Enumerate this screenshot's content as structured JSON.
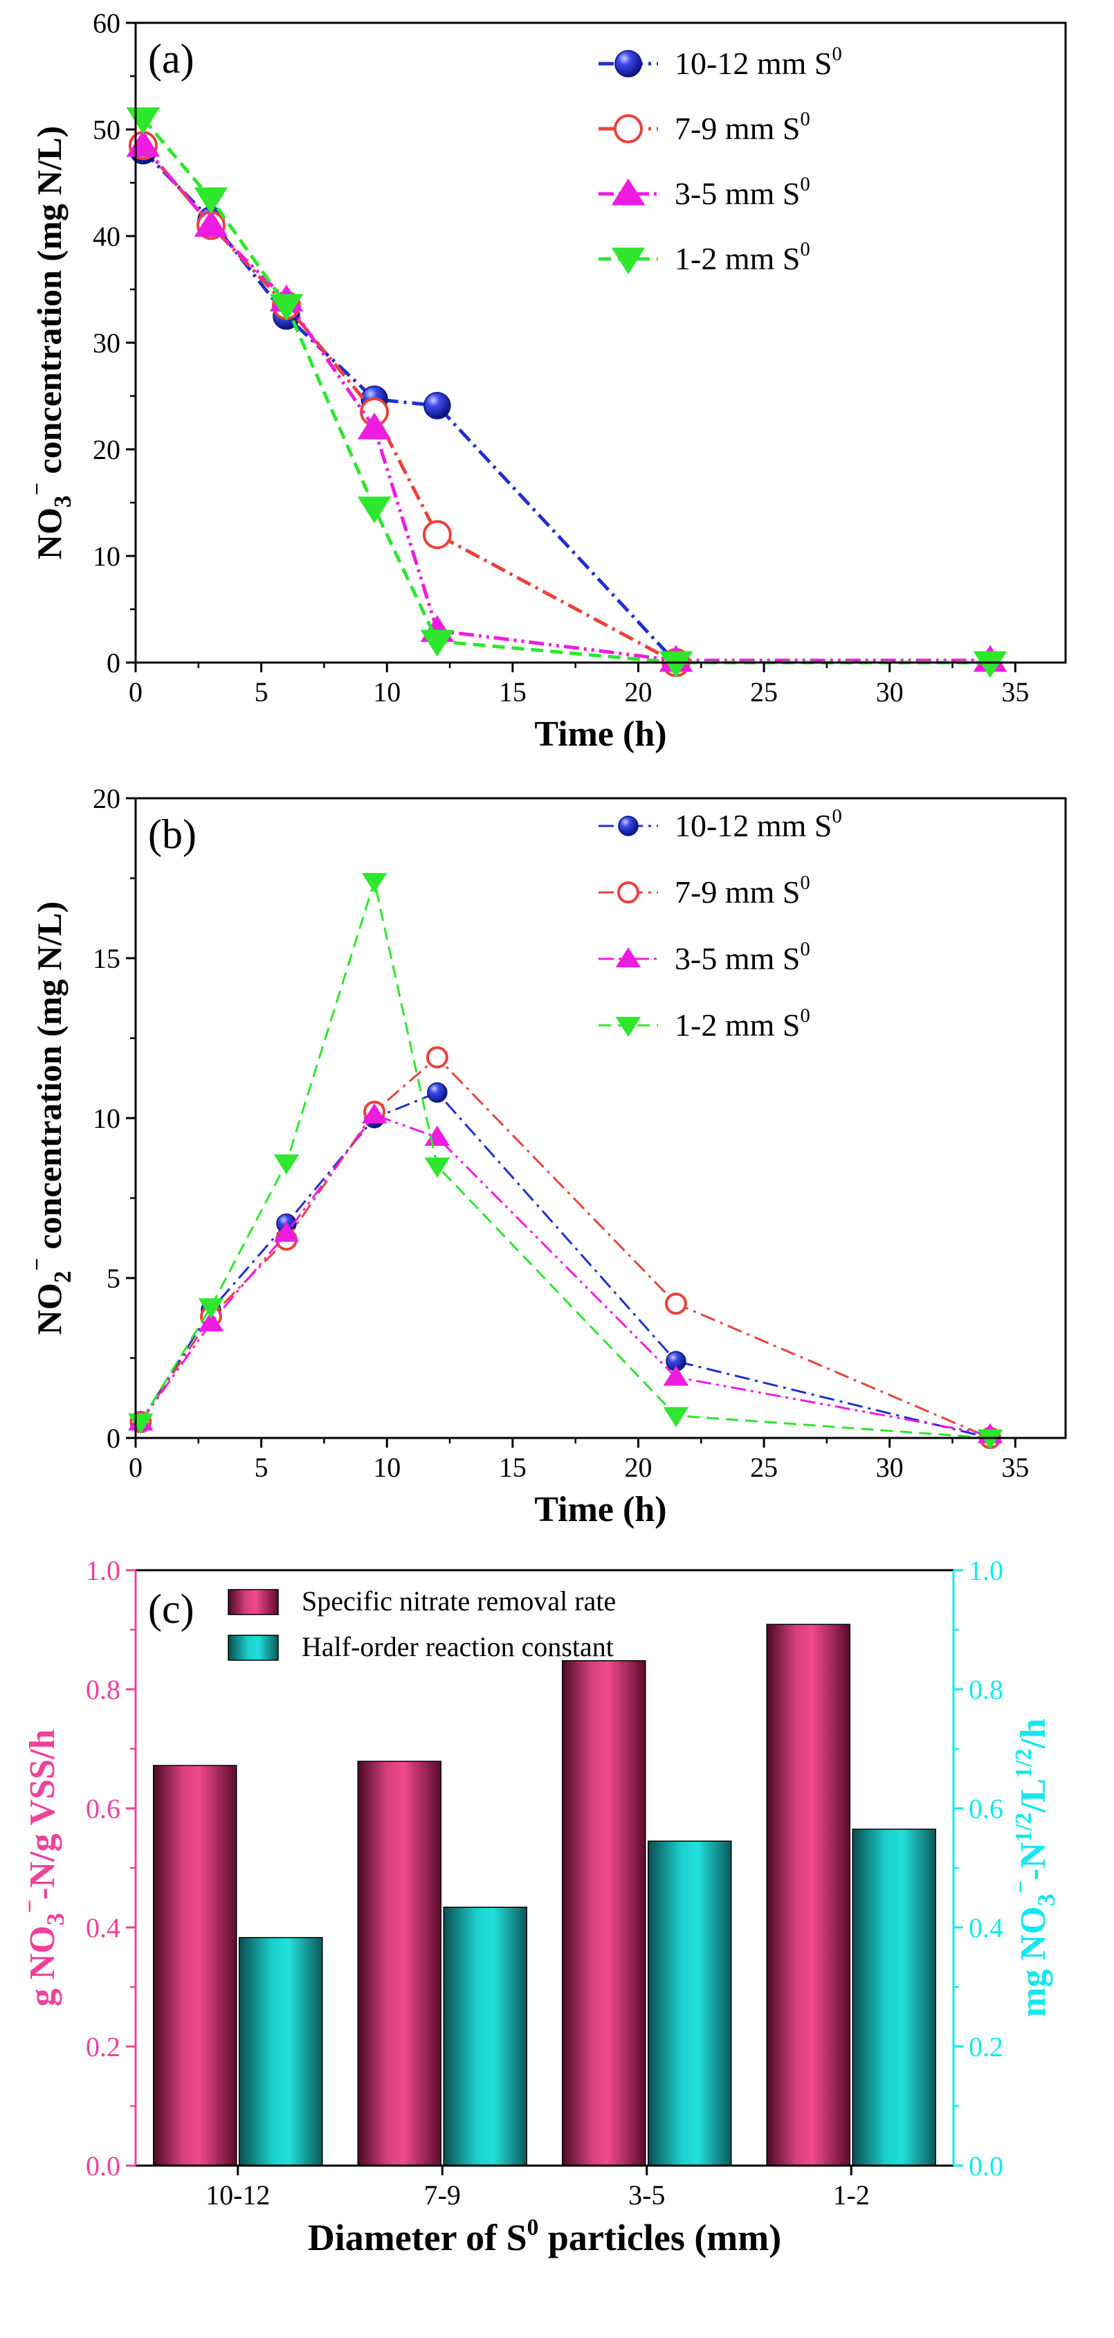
{
  "chart_data": [
    {
      "panel_label": "(a)",
      "type": "line",
      "xlabel": "Time (h)",
      "ylabel_main": "NO",
      "ylabel_sub": "3",
      "ylabel_sup": "−",
      "ylabel_rest": " concentration (mg N/L)",
      "xlim": [
        0,
        37
      ],
      "ylim": [
        0,
        60
      ],
      "xticks": [
        0,
        5,
        10,
        15,
        20,
        25,
        30,
        35
      ],
      "yticks": [
        0,
        10,
        20,
        30,
        40,
        50,
        60
      ],
      "legend_position": "top-right",
      "series": [
        {
          "name": "10-12 mm S",
          "name_sup": "0",
          "color": "#1f2fd0",
          "marker": "sphere",
          "dash": "dash-dot",
          "x": [
            0.3,
            3,
            6,
            9.5,
            12,
            21.5
          ],
          "y": [
            48,
            41.5,
            32.5,
            24.7,
            24.1,
            0
          ]
        },
        {
          "name": "7-9 mm S",
          "name_sup": "0",
          "color": "#e8423a",
          "marker": "open-circle",
          "dash": "dash-dot",
          "x": [
            0.3,
            3,
            6,
            9.5,
            12,
            21.5
          ],
          "y": [
            48.5,
            41,
            33.5,
            23.5,
            12,
            0
          ]
        },
        {
          "name": "3-5 mm S",
          "name_sup": "0",
          "color": "#ee1ce0",
          "marker": "triangle-up",
          "dash": "dash-dot-dot",
          "x": [
            0.3,
            3,
            6,
            9.5,
            12,
            21.5,
            34
          ],
          "y": [
            48.5,
            41,
            34,
            22,
            3,
            0.2,
            0.2
          ]
        },
        {
          "name": "1-2 mm S",
          "name_sup": "0",
          "color": "#2ee62e",
          "marker": "triangle-down",
          "dash": "dashed",
          "x": [
            0.3,
            3,
            6,
            9.5,
            12,
            21.5,
            34
          ],
          "y": [
            51,
            43.5,
            33.5,
            14.5,
            2,
            0,
            0
          ]
        }
      ]
    },
    {
      "panel_label": "(b)",
      "type": "line",
      "xlabel": "Time (h)",
      "ylabel_main": "NO",
      "ylabel_sub": "2",
      "ylabel_sup": "−",
      "ylabel_rest": " concentration (mg N/L)",
      "xlim": [
        0,
        37
      ],
      "ylim": [
        0,
        20
      ],
      "xticks": [
        0,
        5,
        10,
        15,
        20,
        25,
        30,
        35
      ],
      "yticks": [
        0,
        5,
        10,
        15,
        20
      ],
      "legend_position": "top-right",
      "series": [
        {
          "name": "10-12 mm S",
          "name_sup": "0",
          "color": "#1f2fd0",
          "marker": "sphere",
          "dash": "dash-dot",
          "x": [
            0.2,
            3,
            6,
            9.5,
            12,
            21.5,
            34
          ],
          "y": [
            0.5,
            4,
            6.7,
            10,
            10.8,
            2.4,
            0
          ]
        },
        {
          "name": "7-9 mm S",
          "name_sup": "0",
          "color": "#e8423a",
          "marker": "open-circle",
          "dash": "dash-dot",
          "x": [
            0.2,
            3,
            6,
            9.5,
            12,
            21.5,
            34
          ],
          "y": [
            0.5,
            3.8,
            6.2,
            10.2,
            11.9,
            4.2,
            0
          ]
        },
        {
          "name": "3-5 mm S",
          "name_sup": "0",
          "color": "#ee1ce0",
          "marker": "triangle-up",
          "dash": "dash-dot-dot",
          "x": [
            0.2,
            3,
            6,
            9.5,
            12,
            21.5,
            34
          ],
          "y": [
            0.5,
            3.6,
            6.4,
            10.1,
            9.4,
            1.9,
            0.1
          ]
        },
        {
          "name": "1-2 mm S",
          "name_sup": "0",
          "color": "#2ee62e",
          "marker": "triangle-down",
          "dash": "dashed",
          "x": [
            0.2,
            3,
            6,
            9.5,
            12,
            21.5,
            34
          ],
          "y": [
            0.5,
            4.1,
            8.6,
            17.4,
            8.5,
            0.7,
            0
          ]
        }
      ]
    },
    {
      "panel_label": "(c)",
      "type": "bar",
      "xlabel_main": "Diameter of S",
      "xlabel_sup": "0",
      "xlabel_rest": " particles (mm)",
      "ylabel_left_a": "g NO",
      "ylabel_left_sub": "3",
      "ylabel_left_sup": "−",
      "ylabel_left_b": "-N/g VSS/h",
      "ylabel_right_a": "mg NO",
      "ylabel_right_sub": "3",
      "ylabel_right_sup": "−",
      "ylabel_right_b": "-N",
      "ylabel_right_sup2": "1/2",
      "ylabel_right_c": "/L",
      "ylabel_right_sup3": "1/2",
      "ylabel_right_d": "/h",
      "left_color": "#f0409a",
      "right_color": "#12e8ee",
      "ylim_left": [
        0,
        1.0
      ],
      "ylim_right": [
        0,
        1.0
      ],
      "yticks_left": [
        "0.0",
        "0.2",
        "0.4",
        "0.6",
        "0.8",
        "1.0"
      ],
      "yticks_right": [
        "0.0",
        "0.2",
        "0.4",
        "0.6",
        "0.8",
        "1.0"
      ],
      "categories": [
        "10-12",
        "7-9",
        "3-5",
        "1-2"
      ],
      "legend_position": "top-left",
      "series": [
        {
          "name": "Specific nitrate removal rate",
          "color": "#d0387c",
          "axis": "left",
          "values": [
            0.672,
            0.679,
            0.848,
            0.909
          ]
        },
        {
          "name": "Half-order reaction constant",
          "color": "#19c7c2",
          "axis": "right",
          "values": [
            0.383,
            0.434,
            0.545,
            0.565
          ]
        }
      ]
    }
  ]
}
